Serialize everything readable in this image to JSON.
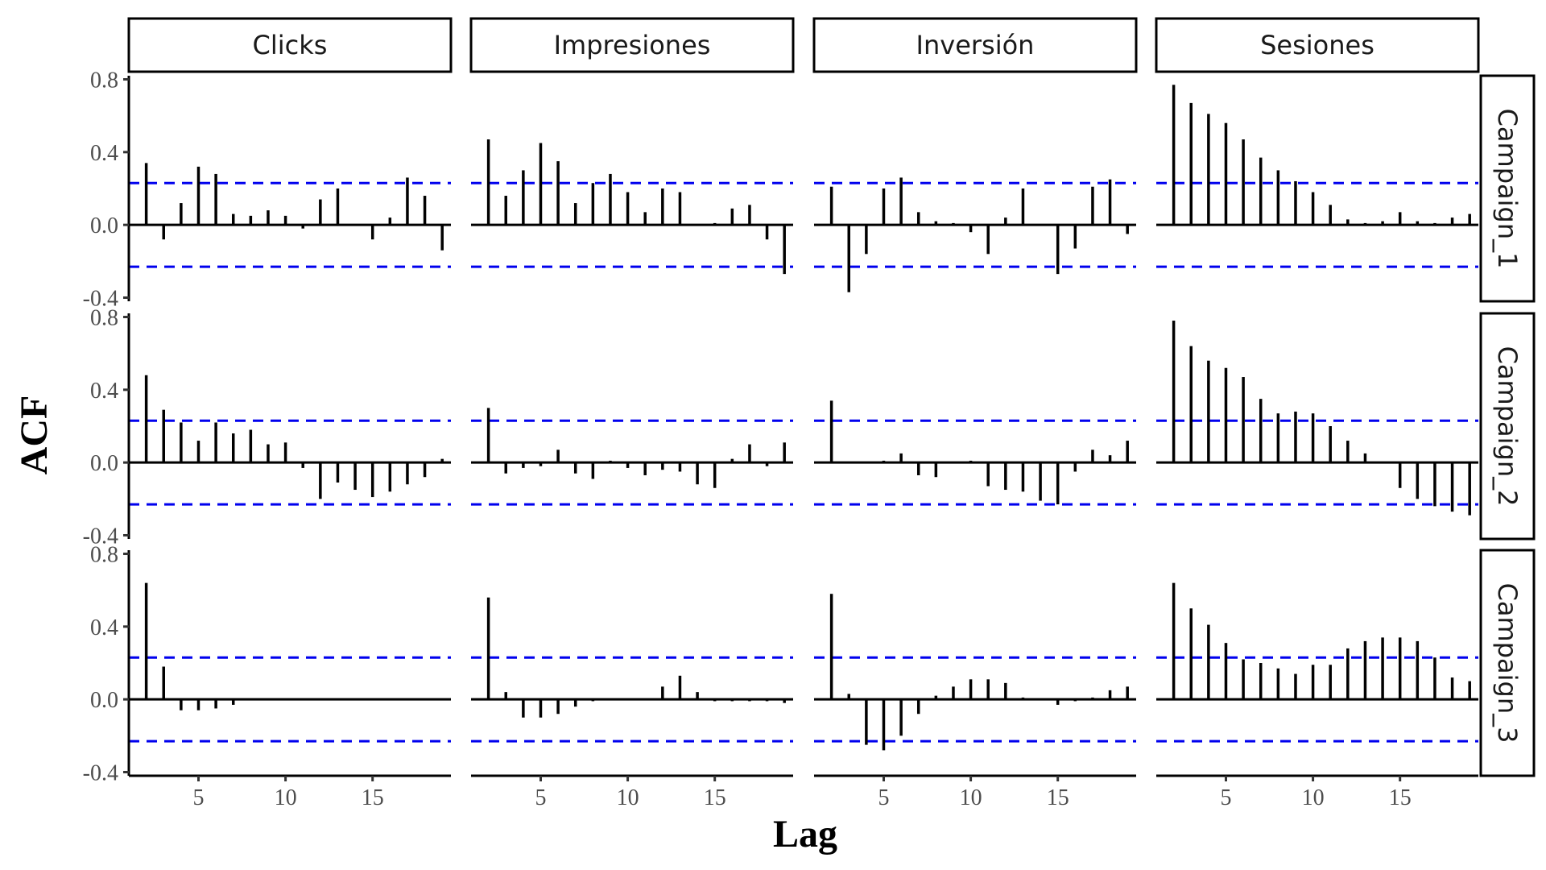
{
  "chart_data": {
    "type": "bar",
    "subtype": "faceted ACF lag plot",
    "xlabel": "Lag",
    "ylabel": "ACF",
    "columns": [
      "Clicks",
      "Impresiones",
      "Inversión",
      "Sesiones"
    ],
    "rows": [
      "Campaign_1",
      "Campaign_2",
      "Campaign_3"
    ],
    "x_ticks": [
      5,
      10,
      15
    ],
    "y_ticks": [
      -0.4,
      0.0,
      0.4,
      0.8
    ],
    "y_tick_labels": [
      "-0.4",
      "0.0",
      "0.4",
      "0.8"
    ],
    "xlim": [
      1,
      19.5
    ],
    "ylim": [
      -0.42,
      0.82
    ],
    "lags": [
      2,
      3,
      4,
      5,
      6,
      7,
      8,
      9,
      10,
      11,
      12,
      13,
      14,
      15,
      16,
      17,
      18,
      19
    ],
    "confidence_limit": 0.23,
    "colors": {
      "bars": "#000000",
      "confidence_line": "#0000ee",
      "zero_line": "#000000",
      "strip_border": "#000000"
    },
    "facets": [
      {
        "row": "Campaign_1",
        "column": "Clicks",
        "acf": [
          0.34,
          -0.08,
          0.12,
          0.32,
          0.28,
          0.06,
          0.05,
          0.08,
          0.05,
          -0.02,
          0.14,
          0.2,
          0.0,
          -0.08,
          0.04,
          0.26,
          0.16,
          -0.14
        ]
      },
      {
        "row": "Campaign_1",
        "column": "Impresiones",
        "acf": [
          0.47,
          0.16,
          0.3,
          0.45,
          0.35,
          0.12,
          0.23,
          0.28,
          0.18,
          0.07,
          0.2,
          0.18,
          0.0,
          0.01,
          0.09,
          0.11,
          -0.08,
          -0.27
        ]
      },
      {
        "row": "Campaign_1",
        "column": "Inversión",
        "acf": [
          0.21,
          -0.37,
          -0.16,
          0.2,
          0.26,
          0.07,
          0.02,
          0.01,
          -0.04,
          -0.16,
          0.04,
          0.2,
          0.0,
          -0.27,
          -0.13,
          0.21,
          0.25,
          -0.05
        ]
      },
      {
        "row": "Campaign_1",
        "column": "Sesiones",
        "acf": [
          0.77,
          0.67,
          0.61,
          0.56,
          0.47,
          0.37,
          0.3,
          0.24,
          0.18,
          0.11,
          0.03,
          0.01,
          0.02,
          0.07,
          0.02,
          0.01,
          0.04,
          0.06
        ]
      },
      {
        "row": "Campaign_2",
        "column": "Clicks",
        "acf": [
          0.48,
          0.29,
          0.22,
          0.12,
          0.22,
          0.16,
          0.18,
          0.1,
          0.11,
          -0.03,
          -0.2,
          -0.11,
          -0.15,
          -0.19,
          -0.16,
          -0.12,
          -0.08,
          0.02
        ]
      },
      {
        "row": "Campaign_2",
        "column": "Impresiones",
        "acf": [
          0.3,
          -0.06,
          -0.03,
          -0.02,
          0.07,
          -0.06,
          -0.09,
          0.01,
          -0.03,
          -0.07,
          -0.04,
          -0.05,
          -0.12,
          -0.14,
          0.02,
          0.1,
          -0.02,
          0.11
        ]
      },
      {
        "row": "Campaign_2",
        "column": "Inversión",
        "acf": [
          0.34,
          0.0,
          0.0,
          0.01,
          0.05,
          -0.07,
          -0.08,
          0.0,
          0.01,
          -0.13,
          -0.15,
          -0.16,
          -0.21,
          -0.23,
          -0.05,
          0.07,
          0.04,
          0.12
        ]
      },
      {
        "row": "Campaign_2",
        "column": "Sesiones",
        "acf": [
          0.78,
          0.64,
          0.56,
          0.52,
          0.47,
          0.35,
          0.27,
          0.28,
          0.27,
          0.2,
          0.12,
          0.05,
          0.0,
          -0.14,
          -0.2,
          -0.24,
          -0.27,
          -0.29
        ]
      },
      {
        "row": "Campaign_3",
        "column": "Clicks",
        "acf": [
          0.64,
          0.18,
          -0.06,
          -0.06,
          -0.05,
          -0.03,
          0.0,
          0.0,
          0.0,
          0.0,
          0.0,
          0.0,
          0.0,
          0.0,
          0.0,
          0.0,
          0.0,
          0.0
        ]
      },
      {
        "row": "Campaign_3",
        "column": "Impresiones",
        "acf": [
          0.56,
          0.04,
          -0.1,
          -0.1,
          -0.08,
          -0.04,
          -0.01,
          0.0,
          0.0,
          0.0,
          0.07,
          0.13,
          0.04,
          -0.01,
          -0.01,
          -0.01,
          -0.01,
          -0.02
        ]
      },
      {
        "row": "Campaign_3",
        "column": "Inversión",
        "acf": [
          0.58,
          0.03,
          -0.25,
          -0.28,
          -0.2,
          -0.08,
          0.02,
          0.07,
          0.11,
          0.11,
          0.09,
          0.01,
          0.0,
          -0.03,
          -0.01,
          0.01,
          0.05,
          0.07
        ]
      },
      {
        "row": "Campaign_3",
        "column": "Sesiones",
        "acf": [
          0.64,
          0.5,
          0.41,
          0.31,
          0.22,
          0.2,
          0.17,
          0.14,
          0.19,
          0.19,
          0.28,
          0.32,
          0.34,
          0.34,
          0.32,
          0.23,
          0.12,
          0.1
        ]
      }
    ]
  }
}
